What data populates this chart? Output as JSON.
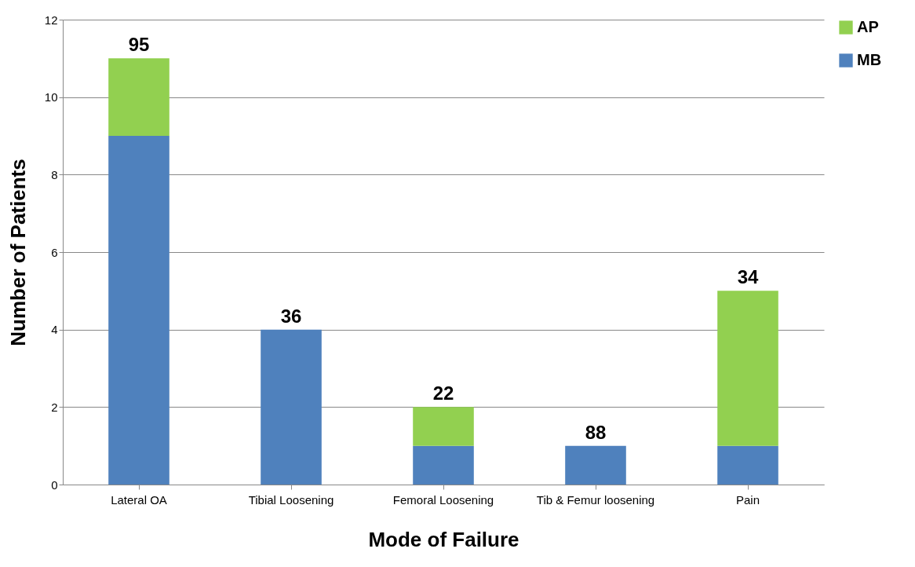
{
  "chart_data": {
    "type": "bar",
    "stacked": true,
    "xlabel": "Mode of Failure",
    "ylabel": "Number of Patients",
    "categories": [
      "Lateral OA",
      "Tibial Loosening",
      "Femoral Loosening",
      "Tib & Femur loosening",
      "Pain"
    ],
    "series": [
      {
        "name": "MB",
        "color": "#4f81bd",
        "values": [
          9,
          4,
          1,
          1,
          1
        ]
      },
      {
        "name": "AP",
        "color": "#92d050",
        "values": [
          2,
          null,
          1,
          null,
          4
        ]
      }
    ],
    "ylim": [
      0,
      12
    ],
    "yticks": [
      0,
      2,
      4,
      6,
      8,
      10,
      12
    ],
    "grid": "y",
    "legend": "right",
    "annotations": [
      {
        "text": "95",
        "x": "Lateral OA",
        "y": 11
      },
      {
        "text": "36",
        "x": "Tibial Loosening",
        "y": 4
      },
      {
        "text": "22",
        "x": "Femoral Loosening",
        "y": 2
      },
      {
        "text": "88",
        "x": "Tib & Femur loosening",
        "y": 1
      },
      {
        "text": "34",
        "x": "Pain",
        "y": 5
      }
    ]
  }
}
